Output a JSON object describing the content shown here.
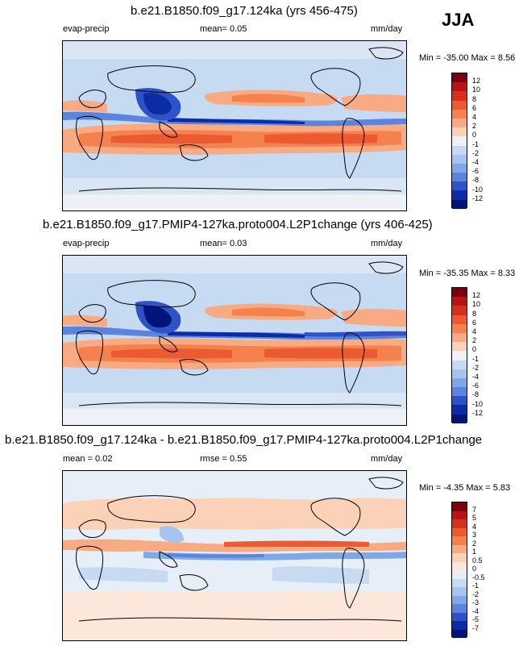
{
  "season": "JJA",
  "panels": [
    {
      "title": "b.e21.B1850.f09_g17.124ka (yrs 456-475)",
      "field": "evap-precip",
      "stat": "mean=   0.05",
      "units": "mm/day",
      "minmax": "Min = -35.00 Max =   8.56",
      "levels": [
        "12",
        "10",
        "8",
        "6",
        "4",
        "2",
        "0",
        "-1",
        "-2",
        "-4",
        "-6",
        "-8",
        "-10",
        "-12"
      ],
      "colors": [
        "#7a0010",
        "#b81418",
        "#d6301e",
        "#ec5a32",
        "#f4814e",
        "#f8aa82",
        "#fbd1b8",
        "#eef2f6",
        "#c6daf2",
        "#a6c4ee",
        "#7fa8e8",
        "#5a84de",
        "#2e52c8",
        "#0c2ca6",
        "#00147a"
      ]
    },
    {
      "title": "b.e21.B1850.f09_g17.PMIP4-127ka.proto004.L2P1change (yrs 406-425)",
      "field": "evap-precip",
      "stat": "mean=   0.03",
      "units": "mm/day",
      "minmax": "Min = -35.35 Max =   8.33",
      "levels": [
        "12",
        "10",
        "8",
        "6",
        "4",
        "2",
        "0",
        "-1",
        "-2",
        "-4",
        "-6",
        "-8",
        "-10",
        "-12"
      ],
      "colors": [
        "#7a0010",
        "#b81418",
        "#d6301e",
        "#ec5a32",
        "#f4814e",
        "#f8aa82",
        "#fbd1b8",
        "#eef2f6",
        "#c6daf2",
        "#a6c4ee",
        "#7fa8e8",
        "#5a84de",
        "#2e52c8",
        "#0c2ca6",
        "#00147a"
      ]
    },
    {
      "title": "b.e21.B1850.f09_g17.124ka - b.e21.B1850.f09_g17.PMIP4-127ka.proto004.L2P1change",
      "field": "mean =   0.02",
      "stat": "rmse =   0.55",
      "units": "mm/day",
      "minmax": "Min =  -4.35 Max =   5.83",
      "levels": [
        "7",
        "5",
        "4",
        "3",
        "2",
        "1",
        "0.5",
        "0",
        "-0.5",
        "-1",
        "-2",
        "-3",
        "-4",
        "-5",
        "-7"
      ],
      "colors": [
        "#7a0010",
        "#b81418",
        "#d6301e",
        "#ec5a32",
        "#f4814e",
        "#f8aa82",
        "#fbd1b8",
        "#fde6da",
        "#e6eef8",
        "#c6daf2",
        "#a6c4ee",
        "#7fa8e8",
        "#5a84de",
        "#2e52c8",
        "#0c2ca6",
        "#00147a"
      ]
    }
  ]
}
